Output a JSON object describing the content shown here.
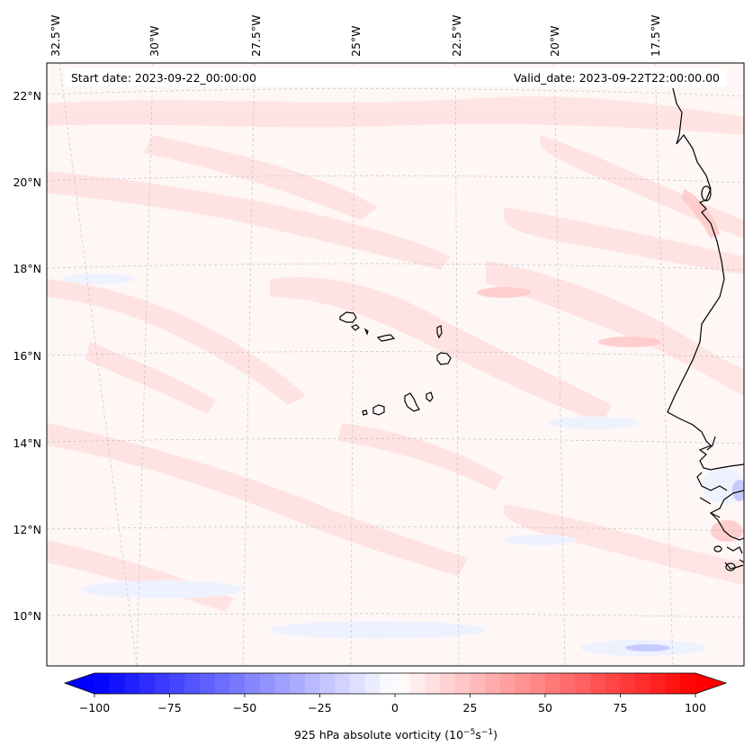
{
  "header": {
    "start_date": "Start date: 2023-09-22_00:00:00",
    "valid_date": "Valid_date: 2023-09-22T22:00:00.00"
  },
  "longitude_labels": [
    "32.5°W",
    "30°W",
    "27.5°W",
    "25°W",
    "22.5°W",
    "20°W",
    "17.5°W"
  ],
  "latitude_labels": [
    "22°N",
    "20°N",
    "18°N",
    "16°N",
    "14°N",
    "12°N",
    "10°N"
  ],
  "colorbar": {
    "ticks": [
      "−100",
      "−75",
      "−50",
      "−25",
      "0",
      "25",
      "50",
      "75",
      "100"
    ],
    "label": "925 hPa absolute vorticity (10",
    "label_exp1": "−5",
    "label_mid": "s",
    "label_exp2": "−1",
    "label_end": ")",
    "min": -100,
    "max": 100,
    "low_color": "#0000ff",
    "mid_color": "#ffffff",
    "high_color": "#ff0000"
  },
  "field": {
    "background_color": "#fff6f6",
    "positive_tint": "#ffe3e3",
    "negative_tint": "#eef2ff"
  }
}
